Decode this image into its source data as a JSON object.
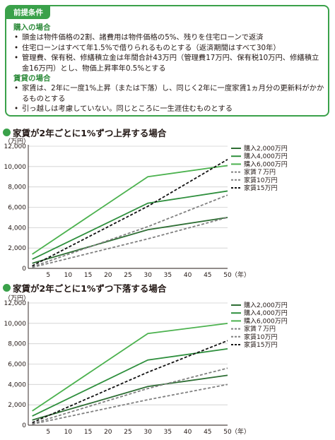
{
  "conditions": {
    "tab": "前提条件",
    "purchase_heading": "購入の場合",
    "purchase_items": [
      "頭金は物件価格の2割、諸費用は物件価格の5%、残りを住宅ローンで返済",
      "住宅ローンはすべて年1.5%で借りられるものとする（返済期間はすべて30年）",
      "管理費、保有税、修繕積立金は年間合計43万円（管理費17万円、保有税10万円、修繕積立金16万円）とし、物価上昇率年0.5%とする"
    ],
    "rent_heading": "賃貸の場合",
    "rent_items": [
      "家賃は、2年に一度1%上昇（または下落）し、同じく2年に一度家賃1ヵ月分の更新料がかかるものとする",
      "引っ越しは考慮していない。同じところに一生涯住むものとする"
    ]
  },
  "colors": {
    "green_dark": "#2e6e34",
    "green_mid": "#2e8f3d",
    "green_light": "#4cb24f",
    "gray": "#808080",
    "black": "#111111"
  },
  "chart_data": [
    {
      "type": "line",
      "title": "家賃が2年ごとに1%ずつ上昇する場合",
      "ylabel": "（万円）",
      "xlabel": "（年）",
      "xlim": [
        0,
        50
      ],
      "ylim": [
        0,
        12000
      ],
      "xticks": [
        5,
        10,
        15,
        20,
        25,
        30,
        35,
        40,
        45,
        50
      ],
      "yticks": [
        0,
        2000,
        4000,
        6000,
        8000,
        10000,
        12000
      ],
      "x": [
        1,
        30,
        50
      ],
      "legend_position": "right",
      "series": [
        {
          "name": "購入2,000万円",
          "style": "solid",
          "color": "#2e6e34",
          "values": [
            500,
            3800,
            5000
          ]
        },
        {
          "name": "購入4,000万円",
          "style": "solid",
          "color": "#2e8f3d",
          "values": [
            900,
            6400,
            7600
          ]
        },
        {
          "name": "購入6,000万円",
          "style": "solid",
          "color": "#4cb24f",
          "values": [
            1400,
            9000,
            10100
          ]
        },
        {
          "name": "家賃７万円",
          "style": "dashed",
          "color": "#808080",
          "values": [
            100,
            2900,
            5000
          ]
        },
        {
          "name": "家賃10万円",
          "style": "dashed",
          "color": "#808080",
          "values": [
            150,
            4100,
            7200
          ]
        },
        {
          "name": "家賃15万円",
          "style": "dashed",
          "color": "#111111",
          "values": [
            250,
            6100,
            10700
          ]
        }
      ]
    },
    {
      "type": "line",
      "title": "家賃が2年ごとに1%ずつ下落する場合",
      "ylabel": "（万円）",
      "xlabel": "（年）",
      "xlim": [
        0,
        50
      ],
      "ylim": [
        0,
        12000
      ],
      "xticks": [
        5,
        10,
        15,
        20,
        25,
        30,
        35,
        40,
        45,
        50
      ],
      "yticks": [
        0,
        2000,
        4000,
        6000,
        8000,
        10000,
        12000
      ],
      "x": [
        1,
        30,
        50
      ],
      "legend_position": "right",
      "series": [
        {
          "name": "購入2,000万円",
          "style": "solid",
          "color": "#2e6e34",
          "values": [
            500,
            3800,
            4900
          ]
        },
        {
          "name": "購入4,000万円",
          "style": "solid",
          "color": "#2e8f3d",
          "values": [
            900,
            6400,
            7500
          ]
        },
        {
          "name": "購入6,000万円",
          "style": "solid",
          "color": "#4cb24f",
          "values": [
            1400,
            9000,
            10000
          ]
        },
        {
          "name": "家賃７万円",
          "style": "dashed",
          "color": "#808080",
          "values": [
            100,
            2500,
            4000
          ]
        },
        {
          "name": "家賃10万円",
          "style": "dashed",
          "color": "#808080",
          "values": [
            150,
            3600,
            5600
          ]
        },
        {
          "name": "家賃15万円",
          "style": "dashed",
          "color": "#111111",
          "values": [
            250,
            5200,
            8300
          ]
        }
      ]
    }
  ]
}
